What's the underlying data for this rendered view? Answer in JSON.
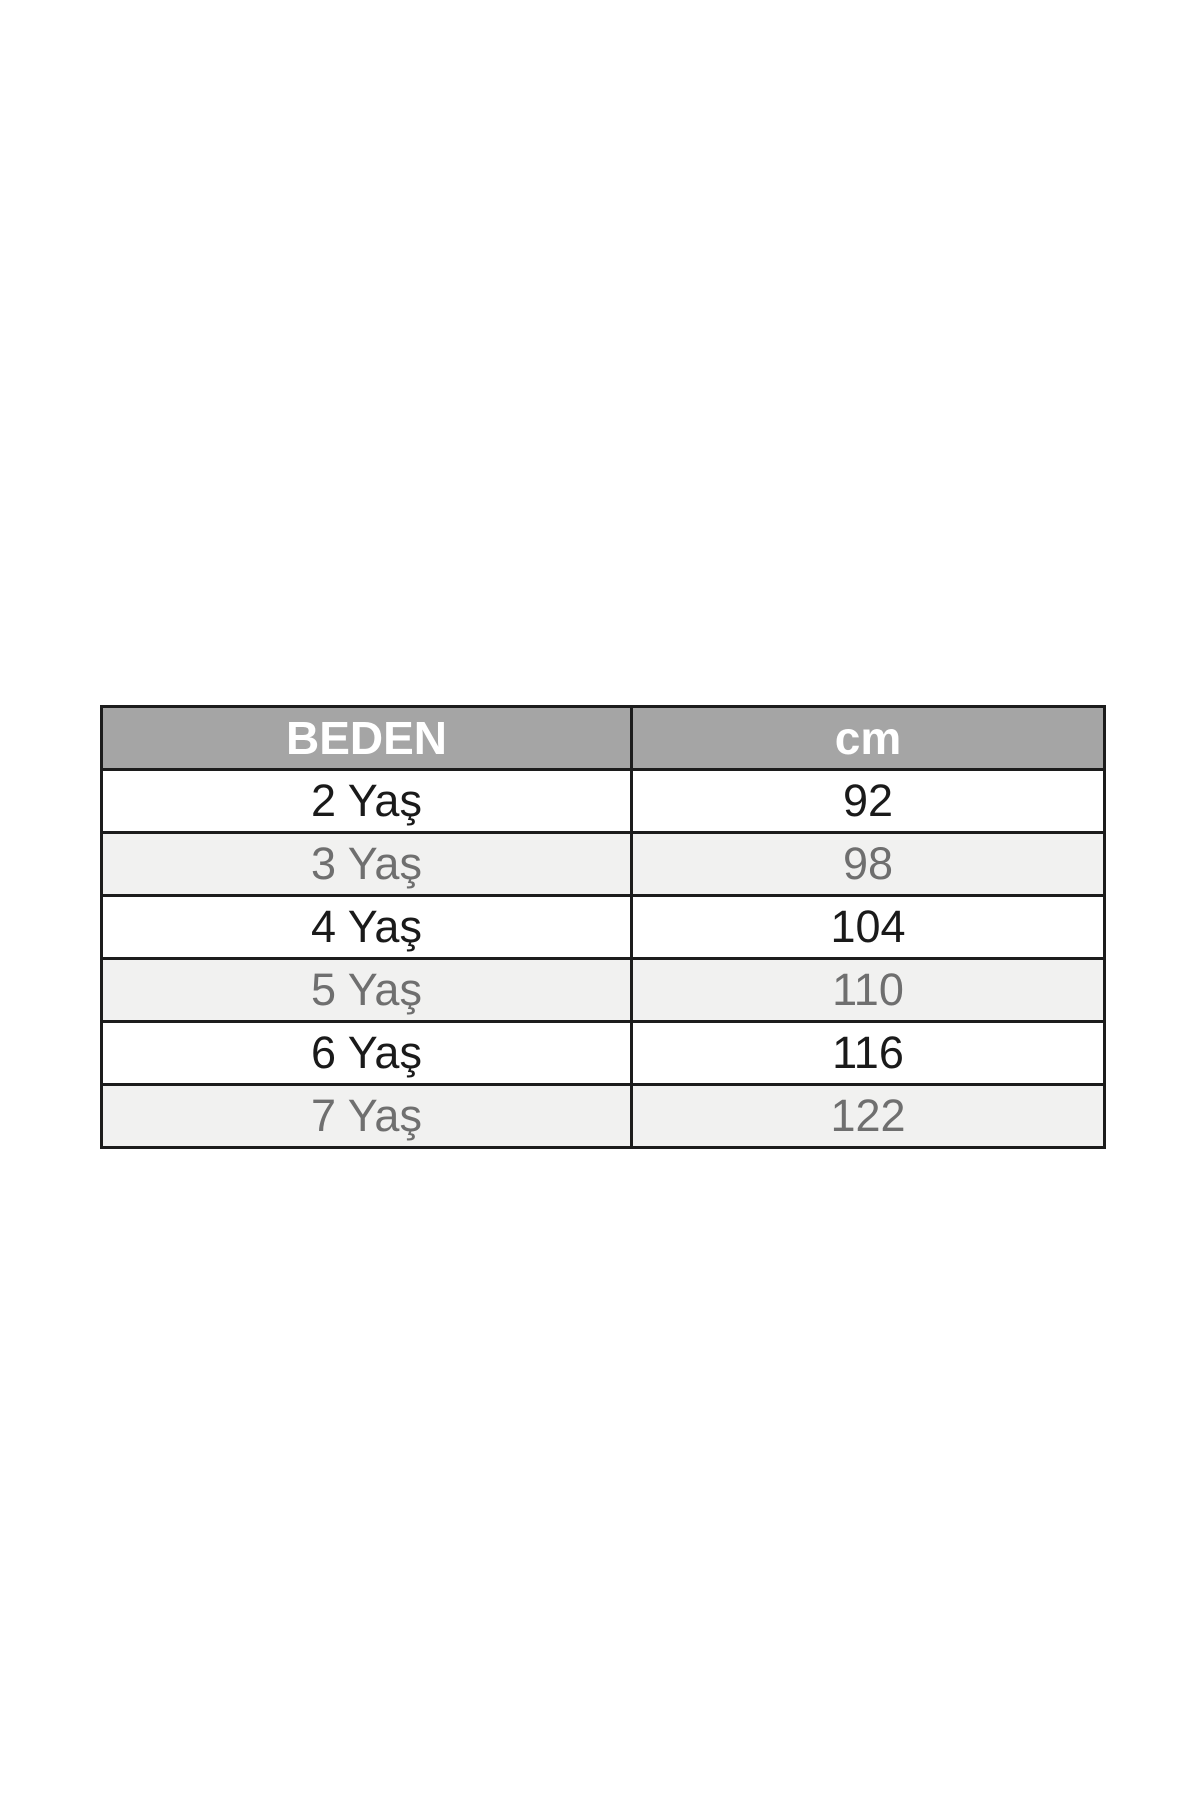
{
  "chart_data": {
    "type": "table",
    "title": "",
    "columns": [
      "BEDEN",
      "cm"
    ],
    "rows": [
      [
        "2 Yaş",
        "92"
      ],
      [
        "3 Yaş",
        "98"
      ],
      [
        "4 Yaş",
        "104"
      ],
      [
        "5 Yaş",
        "110"
      ],
      [
        "6 Yaş",
        "116"
      ],
      [
        "7 Yaş",
        "122"
      ]
    ]
  },
  "colors": {
    "header_bg": "#a5a5a5",
    "header_text": "#ffffff",
    "row_odd_bg": "#ffffff",
    "row_odd_text": "#1a1a1a",
    "row_even_bg": "#f1f1f0",
    "row_even_text": "#6f6f6f",
    "border": "#1c1c1c",
    "page_bg": "#ffffff"
  }
}
